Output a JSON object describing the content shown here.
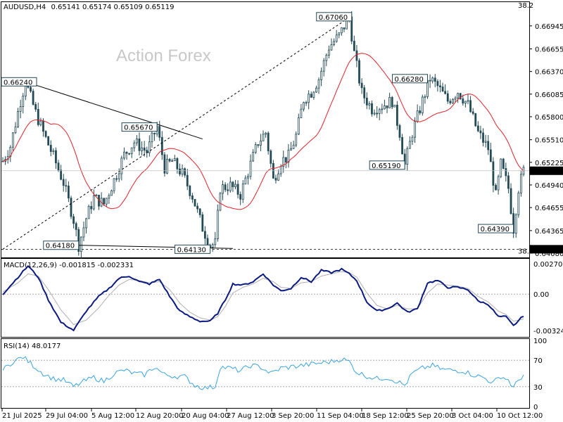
{
  "header": {
    "symbol": "AUDUSD,H4",
    "ohlc": "0.65141 0.65174 0.65109 0.65119"
  },
  "watermark": "Action Forex",
  "colors": {
    "candle": "#234a56",
    "ma": "#e0222a",
    "macd_main": "#0a1a80",
    "macd_signal": "#b0b0b0",
    "rsi": "#3aa3e0",
    "grid_label": "#000000"
  },
  "chart_data": [
    {
      "type": "candlestick",
      "panel": "price",
      "ylim": [
        0.6408,
        0.672
      ],
      "y_ticks": [
        "0.66945",
        "0.66655",
        "0.66370",
        "0.66085",
        "0.65800",
        "0.65510",
        "0.65225",
        "0.64940",
        "0.64655",
        "0.64365",
        "0.64080"
      ],
      "x_tick_labels": [
        "21 Jul 2025",
        "29 Jul 04:00",
        "5 Aug 12:00",
        "12 Aug 20:00",
        "20 Aug 04:00",
        "27 Aug 12:00",
        "3 Sep 20:00",
        "11 Sep 04:00",
        "18 Sep 12:00",
        "25 Sep 20:00",
        "3 Oct 04:00",
        "10 Oct 12:00"
      ],
      "current_price": "0.65119",
      "current_value": 0.65119,
      "fib_label": "38.2",
      "fib_level": "0.64130",
      "fib_level_value": 0.6413,
      "moving_average": "red",
      "price_path": [
        [
          0,
          0.6524
        ],
        [
          3,
          0.6543
        ],
        [
          7,
          0.66
        ],
        [
          9,
          0.6624
        ],
        [
          13,
          0.6585
        ],
        [
          16,
          0.656
        ],
        [
          20,
          0.653
        ],
        [
          24,
          0.6497
        ],
        [
          28,
          0.645
        ],
        [
          30,
          0.6418
        ],
        [
          33,
          0.6452
        ],
        [
          36,
          0.6478
        ],
        [
          40,
          0.647
        ],
        [
          44,
          0.65
        ],
        [
          48,
          0.6532
        ],
        [
          52,
          0.6548
        ],
        [
          57,
          0.6536
        ],
        [
          61,
          0.6567
        ],
        [
          64,
          0.6516
        ],
        [
          67,
          0.6524
        ],
        [
          71,
          0.6508
        ],
        [
          75,
          0.648
        ],
        [
          79,
          0.644
        ],
        [
          82,
          0.6418
        ],
        [
          84,
          0.642
        ],
        [
          86,
          0.649
        ],
        [
          90,
          0.6493
        ],
        [
          94,
          0.6482
        ],
        [
          98,
          0.652
        ],
        [
          101,
          0.6548
        ],
        [
          104,
          0.656
        ],
        [
          107,
          0.65
        ],
        [
          110,
          0.6524
        ],
        [
          113,
          0.653
        ],
        [
          116,
          0.6556
        ],
        [
          119,
          0.6602
        ],
        [
          122,
          0.6611
        ],
        [
          125,
          0.6628
        ],
        [
          129,
          0.6668
        ],
        [
          133,
          0.6682
        ],
        [
          137,
          0.6706
        ],
        [
          139,
          0.666
        ],
        [
          142,
          0.661
        ],
        [
          146,
          0.659
        ],
        [
          150,
          0.6594
        ],
        [
          154,
          0.66
        ],
        [
          157,
          0.656
        ],
        [
          159,
          0.6519
        ],
        [
          162,
          0.656
        ],
        [
          166,
          0.66
        ],
        [
          169,
          0.6628
        ],
        [
          172,
          0.6618
        ],
        [
          176,
          0.66
        ],
        [
          180,
          0.6612
        ],
        [
          184,
          0.6595
        ],
        [
          188,
          0.656
        ],
        [
          192,
          0.654
        ],
        [
          195,
          0.648
        ],
        [
          197,
          0.652
        ],
        [
          200,
          0.649
        ],
        [
          202,
          0.6439
        ],
        [
          204,
          0.649
        ],
        [
          206,
          0.6512
        ]
      ],
      "labels": [
        {
          "text": "0.67060",
          "x": 138,
          "y": 0.6706
        },
        {
          "text": "0.66280",
          "x": 168,
          "y": 0.6628
        },
        {
          "text": "0.65670",
          "x": 61,
          "y": 0.6567
        },
        {
          "text": "0.65190",
          "x": 159,
          "y": 0.6519
        },
        {
          "text": "0.64390",
          "x": 202,
          "y": 0.6439
        },
        {
          "text": "0.64180",
          "x": 30,
          "y": 0.6418
        },
        {
          "text": "0.64130",
          "x": 82,
          "y": 0.6413
        },
        {
          "text": "0.66240",
          "x": 9,
          "y": 0.6624
        }
      ],
      "trendlines": [
        {
          "from": [
            9,
            0.6624
          ],
          "to": [
            79,
            0.6552
          ],
          "style": "solid"
        },
        {
          "from": [
            0,
            0.6413
          ],
          "to": [
            137,
            0.6705
          ],
          "style": "dashed"
        },
        {
          "from": [
            30,
            0.6418
          ],
          "to": [
            91,
            0.6414
          ],
          "style": "solid"
        }
      ]
    },
    {
      "type": "line",
      "panel": "macd",
      "title": "MACD(12,26,9) -0.001815 -0.002331",
      "ylim": [
        -0.0036,
        0.003
      ],
      "y_ticks": [
        "0.002702",
        "0.00",
        "-0.003241"
      ],
      "main_path": [
        [
          0,
          0.0
        ],
        [
          6,
          0.0015
        ],
        [
          10,
          0.0025
        ],
        [
          14,
          0.0015
        ],
        [
          18,
          -0.0005
        ],
        [
          23,
          -0.0025
        ],
        [
          28,
          -0.0032
        ],
        [
          33,
          -0.0015
        ],
        [
          38,
          -0.0002
        ],
        [
          42,
          0.0005
        ],
        [
          46,
          0.0014
        ],
        [
          50,
          0.0016
        ],
        [
          54,
          0.0011
        ],
        [
          58,
          0.0009
        ],
        [
          62,
          0.0013
        ],
        [
          66,
          -0.0002
        ],
        [
          70,
          -0.0015
        ],
        [
          74,
          -0.002
        ],
        [
          78,
          -0.0024
        ],
        [
          82,
          -0.0024
        ],
        [
          85,
          -0.0017
        ],
        [
          88,
          -0.0005
        ],
        [
          91,
          0.0009
        ],
        [
          95,
          0.0008
        ],
        [
          99,
          0.0011
        ],
        [
          103,
          0.0018
        ],
        [
          107,
          0.0008
        ],
        [
          110,
          0.0003
        ],
        [
          114,
          0.0005
        ],
        [
          118,
          0.0015
        ],
        [
          122,
          0.0011
        ],
        [
          126,
          0.0021
        ],
        [
          130,
          0.0019
        ],
        [
          134,
          0.0022
        ],
        [
          137,
          0.0018
        ],
        [
          140,
          0.0012
        ],
        [
          144,
          -0.0007
        ],
        [
          148,
          -0.0015
        ],
        [
          152,
          -0.0013
        ],
        [
          156,
          -0.0008
        ],
        [
          160,
          -0.0016
        ],
        [
          164,
          -0.0013
        ],
        [
          168,
          0.001
        ],
        [
          172,
          0.0012
        ],
        [
          176,
          0.0006
        ],
        [
          180,
          0.0006
        ],
        [
          184,
          0.0004
        ],
        [
          188,
          -0.0006
        ],
        [
          192,
          -0.0009
        ],
        [
          196,
          -0.002
        ],
        [
          199,
          -0.002
        ],
        [
          202,
          -0.0028
        ],
        [
          206,
          -0.0019
        ]
      ],
      "signal_path": [
        [
          0,
          0.0002
        ],
        [
          6,
          0.001
        ],
        [
          10,
          0.0018
        ],
        [
          14,
          0.0016
        ],
        [
          18,
          0.0004
        ],
        [
          23,
          -0.0014
        ],
        [
          28,
          -0.0027
        ],
        [
          33,
          -0.0023
        ],
        [
          38,
          -0.0012
        ],
        [
          42,
          -0.0001
        ],
        [
          46,
          0.0008
        ],
        [
          50,
          0.0013
        ],
        [
          54,
          0.0012
        ],
        [
          58,
          0.001
        ],
        [
          62,
          0.0011
        ],
        [
          66,
          0.0004
        ],
        [
          70,
          -0.0008
        ],
        [
          74,
          -0.0016
        ],
        [
          78,
          -0.0021
        ],
        [
          82,
          -0.0023
        ],
        [
          85,
          -0.002
        ],
        [
          88,
          -0.0011
        ],
        [
          91,
          0.0001
        ],
        [
          95,
          0.0006
        ],
        [
          99,
          0.0009
        ],
        [
          103,
          0.0014
        ],
        [
          107,
          0.0011
        ],
        [
          110,
          0.0006
        ],
        [
          114,
          0.0005
        ],
        [
          118,
          0.001
        ],
        [
          122,
          0.0011
        ],
        [
          126,
          0.0016
        ],
        [
          130,
          0.0018
        ],
        [
          134,
          0.002
        ],
        [
          137,
          0.0019
        ],
        [
          140,
          0.0015
        ],
        [
          144,
          0.0001
        ],
        [
          148,
          -0.001
        ],
        [
          152,
          -0.0013
        ],
        [
          156,
          -0.001
        ],
        [
          160,
          -0.0013
        ],
        [
          164,
          -0.0013
        ],
        [
          168,
          0.0001
        ],
        [
          172,
          0.0009
        ],
        [
          176,
          0.0008
        ],
        [
          180,
          0.0007
        ],
        [
          184,
          0.0005
        ],
        [
          188,
          -0.0002
        ],
        [
          192,
          -0.0007
        ],
        [
          196,
          -0.0015
        ],
        [
          199,
          -0.0018
        ],
        [
          202,
          -0.0024
        ],
        [
          206,
          -0.0022
        ]
      ]
    },
    {
      "type": "line",
      "panel": "rsi",
      "title": "RSI(14) 48.0177",
      "ylim": [
        0,
        100
      ],
      "y_ticks": [
        "100",
        "70",
        "30",
        "0"
      ],
      "levels": [
        70,
        30
      ],
      "path": [
        [
          0,
          55
        ],
        [
          4,
          68
        ],
        [
          8,
          75
        ],
        [
          12,
          62
        ],
        [
          16,
          50
        ],
        [
          20,
          42
        ],
        [
          24,
          40
        ],
        [
          28,
          30
        ],
        [
          32,
          38
        ],
        [
          36,
          44
        ],
        [
          40,
          38
        ],
        [
          44,
          50
        ],
        [
          48,
          55
        ],
        [
          52,
          50
        ],
        [
          56,
          48
        ],
        [
          60,
          60
        ],
        [
          64,
          48
        ],
        [
          68,
          46
        ],
        [
          72,
          45
        ],
        [
          76,
          32
        ],
        [
          80,
          28
        ],
        [
          84,
          30
        ],
        [
          86,
          60
        ],
        [
          90,
          58
        ],
        [
          94,
          54
        ],
        [
          98,
          62
        ],
        [
          102,
          60
        ],
        [
          106,
          50
        ],
        [
          110,
          58
        ],
        [
          114,
          60
        ],
        [
          118,
          62
        ],
        [
          122,
          64
        ],
        [
          126,
          66
        ],
        [
          130,
          68
        ],
        [
          134,
          72
        ],
        [
          137,
          68
        ],
        [
          140,
          52
        ],
        [
          144,
          46
        ],
        [
          148,
          42
        ],
        [
          152,
          44
        ],
        [
          156,
          38
        ],
        [
          159,
          32
        ],
        [
          162,
          50
        ],
        [
          166,
          58
        ],
        [
          170,
          62
        ],
        [
          174,
          56
        ],
        [
          178,
          55
        ],
        [
          182,
          54
        ],
        [
          186,
          48
        ],
        [
          190,
          44
        ],
        [
          194,
          36
        ],
        [
          197,
          46
        ],
        [
          200,
          40
        ],
        [
          202,
          28
        ],
        [
          204,
          40
        ],
        [
          206,
          48
        ]
      ]
    }
  ]
}
